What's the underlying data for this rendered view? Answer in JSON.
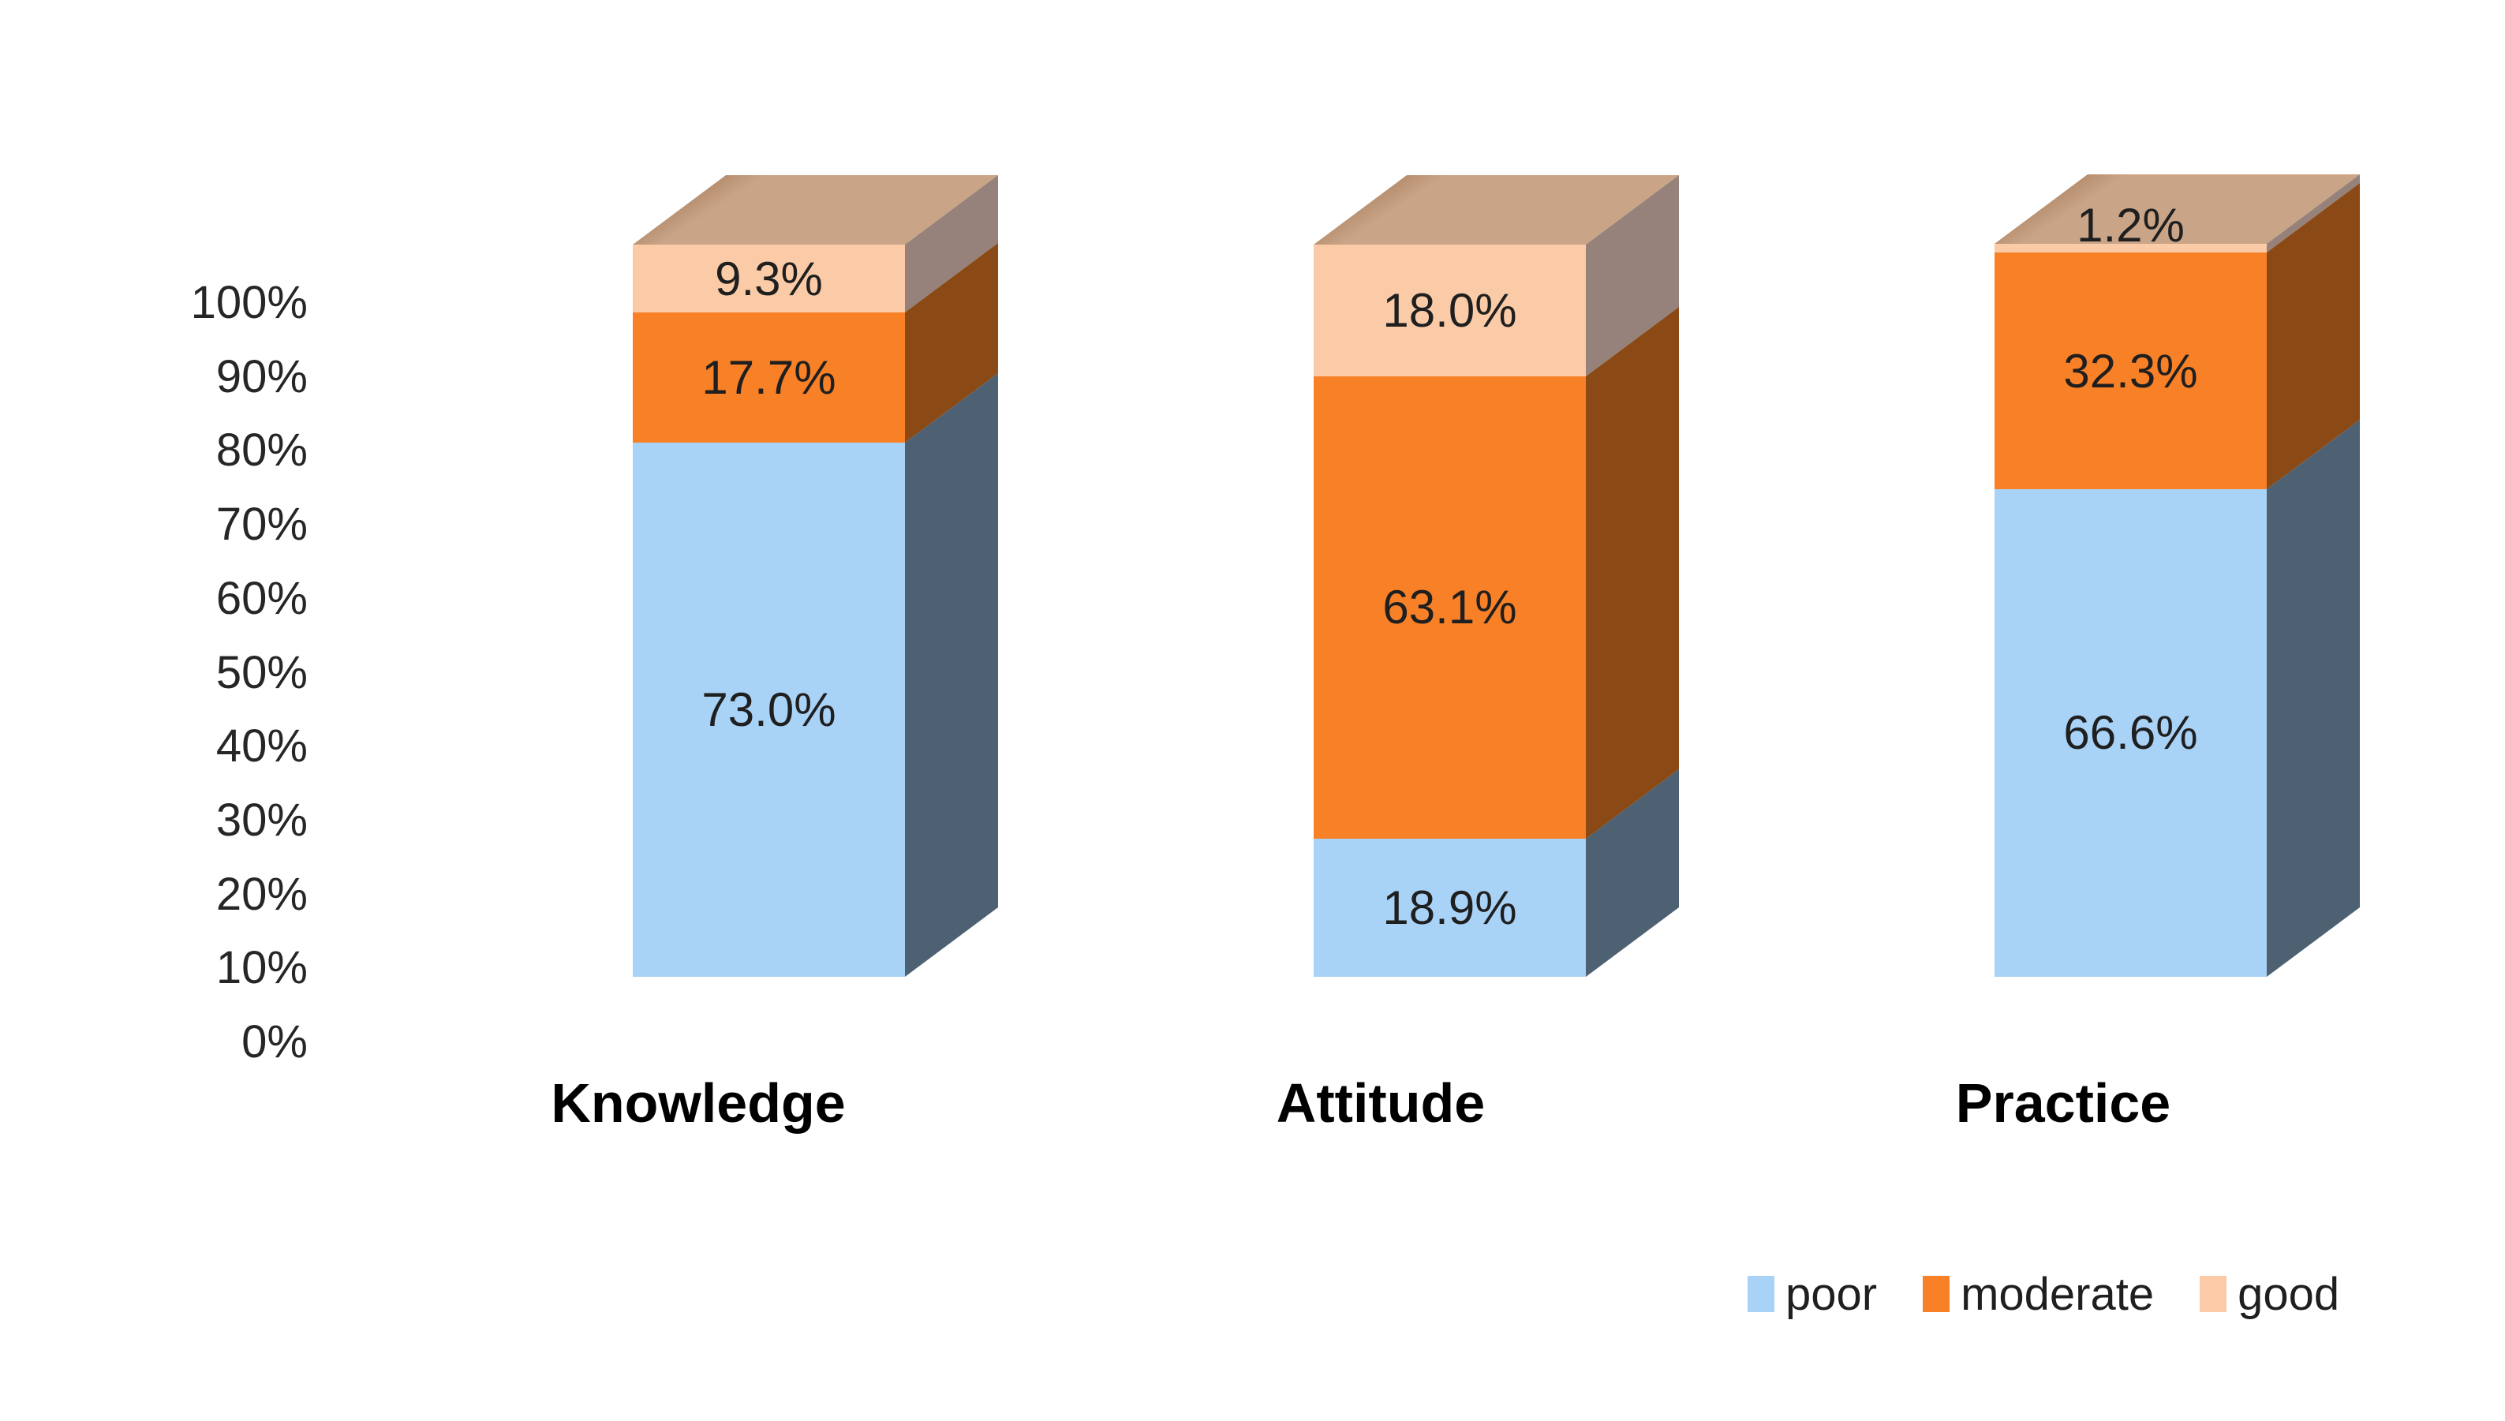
{
  "chart_data": {
    "type": "bar",
    "subtype": "3d-stacked-column",
    "title": "",
    "categories": [
      "Knowledge",
      "Attitude",
      "Practice"
    ],
    "series": [
      {
        "name": "poor",
        "values": [
          73.0,
          18.9,
          66.6
        ],
        "labels": [
          "73.0%",
          "18.9%",
          "66.6%"
        ],
        "color": "#A9D2F7",
        "side_color": "#4D6173"
      },
      {
        "name": "moderate",
        "values": [
          17.7,
          63.1,
          32.3
        ],
        "labels": [
          "17.7%",
          "63.1%",
          "32.3%"
        ],
        "color": "#F88027",
        "side_color": "#8B4A15"
      },
      {
        "name": "good",
        "values": [
          9.3,
          18.0,
          1.2
        ],
        "labels": [
          "9.3%",
          "18.0%",
          "1.2%"
        ],
        "color": "#FBCBA8",
        "side_color": "#96827A"
      }
    ],
    "y_axis": {
      "min": 0,
      "max": 100,
      "ticks": [
        "100%",
        "90%",
        "80%",
        "70%",
        "60%",
        "50%",
        "40%",
        "30%",
        "20%",
        "10%",
        "0%"
      ]
    },
    "top_face_color": "#C9A487",
    "grid": "off",
    "legend_position": "bottom-right",
    "legend": [
      "poor",
      "moderate",
      "good"
    ]
  }
}
